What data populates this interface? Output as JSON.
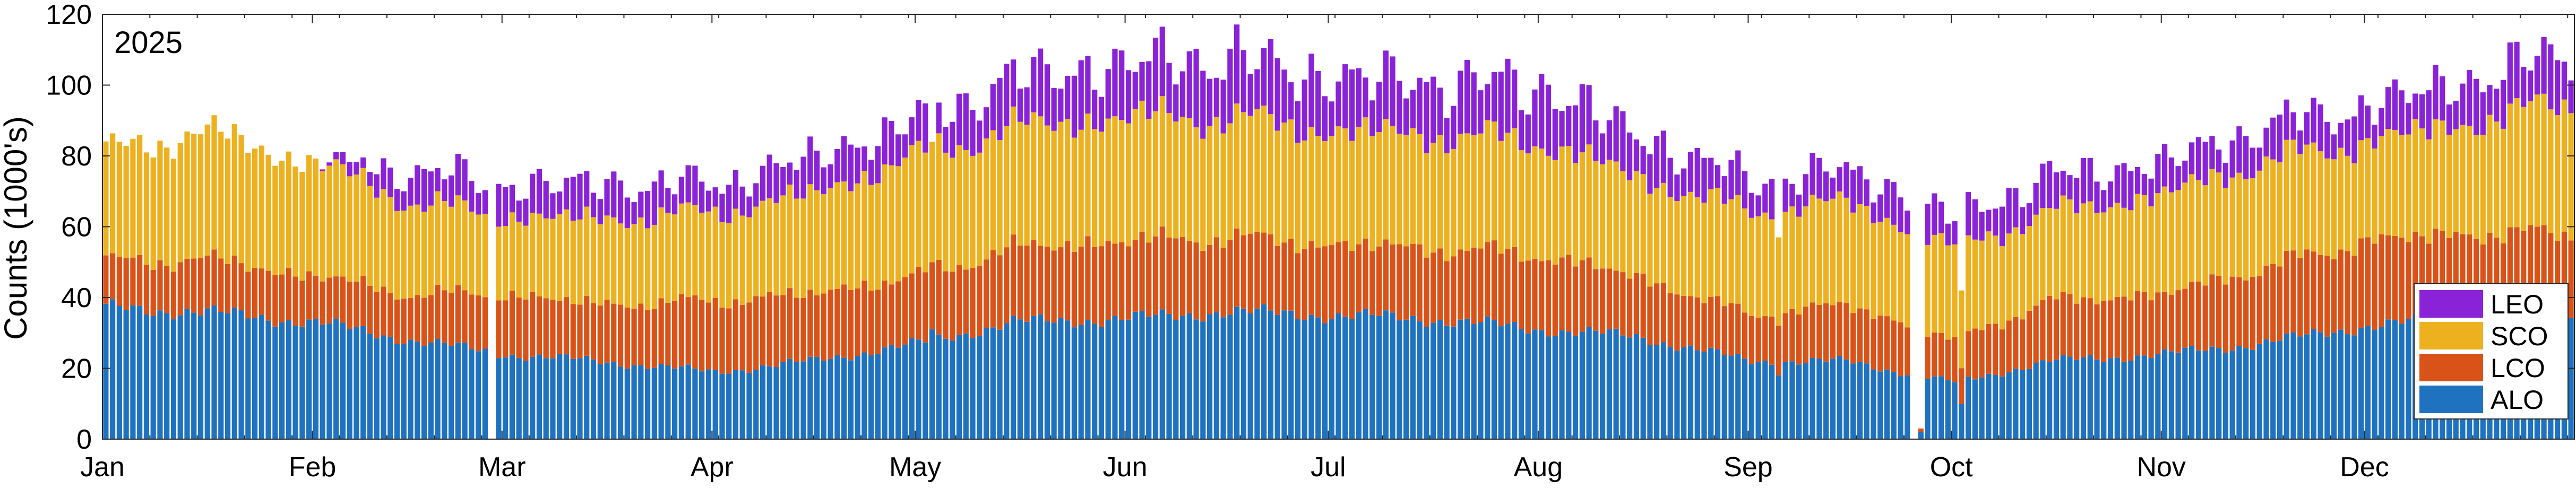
{
  "chart_data": {
    "type": "bar",
    "stacked": true,
    "title": "2025",
    "ylabel": "Counts (1000's)",
    "xlabel": "",
    "ylim": [
      0,
      120
    ],
    "yticks": [
      0,
      20,
      40,
      60,
      80,
      100,
      120
    ],
    "xlim": [
      "2025-01-01",
      "2025-12-31"
    ],
    "x_tick_labels": [
      "Jan",
      "Feb",
      "Mar",
      "Apr",
      "May",
      "Jun",
      "Jul",
      "Aug",
      "Sep",
      "Oct",
      "Nov",
      "Dec"
    ],
    "x_tick_dates": [
      "2025-01-01",
      "2025-02-01",
      "2025-03-01",
      "2025-04-01",
      "2025-05-01",
      "2025-06-01",
      "2025-07-01",
      "2025-08-01",
      "2025-09-01",
      "2025-10-01",
      "2025-11-01",
      "2025-12-01"
    ],
    "x_minor_tick_interval_days": 7,
    "bar_width_days": 0.8,
    "grid": false,
    "legend_position": "bottom-right",
    "series": [
      {
        "name": "ALO",
        "color": "#1f72bf"
      },
      {
        "name": "LCO",
        "color": "#d95319"
      },
      {
        "name": "SCO",
        "color": "#edb120"
      },
      {
        "name": "LEO",
        "color": "#8a22d8"
      }
    ],
    "monthly_profile": [
      {
        "date": "2025-01-01",
        "values": [
          37,
          13,
          31,
          0
        ]
      },
      {
        "date": "2025-01-15",
        "values": [
          36,
          15,
          36,
          0
        ]
      },
      {
        "date": "2025-02-01",
        "values": [
          33,
          13,
          32,
          0
        ]
      },
      {
        "date": "2025-02-15",
        "values": [
          28,
          13,
          26,
          9
        ]
      },
      {
        "date": "2025-03-01",
        "values": [
          24,
          17,
          22,
          9
        ]
      },
      {
        "date": "2025-03-15",
        "values": [
          22,
          16,
          24,
          10
        ]
      },
      {
        "date": "2025-04-01",
        "values": [
          19,
          20,
          25,
          8
        ]
      },
      {
        "date": "2025-04-15",
        "values": [
          22,
          19,
          28,
          10
        ]
      },
      {
        "date": "2025-05-01",
        "values": [
          27,
          19,
          34,
          10
        ]
      },
      {
        "date": "2025-05-15",
        "values": [
          33,
          21,
          34,
          14
        ]
      },
      {
        "date": "2025-06-01",
        "values": [
          34,
          22,
          35,
          15
        ]
      },
      {
        "date": "2025-06-15",
        "values": [
          36,
          21,
          34,
          17
        ]
      },
      {
        "date": "2025-07-01",
        "values": [
          35,
          20,
          32,
          15
        ]
      },
      {
        "date": "2025-07-15",
        "values": [
          34,
          20,
          32,
          15
        ]
      },
      {
        "date": "2025-08-01",
        "values": [
          31,
          21,
          32,
          16
        ]
      },
      {
        "date": "2025-08-15",
        "values": [
          29,
          17,
          28,
          12
        ]
      },
      {
        "date": "2025-09-01",
        "values": [
          22,
          13,
          29,
          9
        ]
      },
      {
        "date": "2025-09-15",
        "values": [
          22,
          16,
          29,
          9
        ]
      },
      {
        "date": "2025-10-01",
        "values": [
          16,
          12,
          26,
          9
        ]
      },
      {
        "date": "2025-10-15",
        "values": [
          22,
          17,
          25,
          10
        ]
      },
      {
        "date": "2025-11-01",
        "values": [
          24,
          17,
          28,
          9
        ]
      },
      {
        "date": "2025-11-15",
        "values": [
          27,
          21,
          30,
          10
        ]
      },
      {
        "date": "2025-12-01",
        "values": [
          32,
          24,
          28,
          10
        ]
      },
      {
        "date": "2025-12-15",
        "values": [
          34,
          24,
          31,
          12
        ]
      },
      {
        "date": "2025-12-31",
        "values": [
          35,
          23,
          37,
          14
        ]
      }
    ],
    "daily_adjustments": [
      {
        "date": "2025-02-27",
        "values": [
          0,
          0,
          0,
          0
        ]
      },
      {
        "date": "2025-09-25",
        "values": [
          0,
          0,
          0,
          0
        ]
      },
      {
        "date": "2025-09-26",
        "values": [
          2,
          1,
          0,
          0
        ]
      },
      {
        "date": "2025-05-03",
        "values": [
          31,
          19,
          34,
          0
        ]
      },
      {
        "date": "2025-09-05",
        "values": [
          18,
          14,
          25,
          0
        ]
      },
      {
        "date": "2025-10-02",
        "values": [
          10,
          10,
          22,
          0
        ]
      }
    ]
  }
}
